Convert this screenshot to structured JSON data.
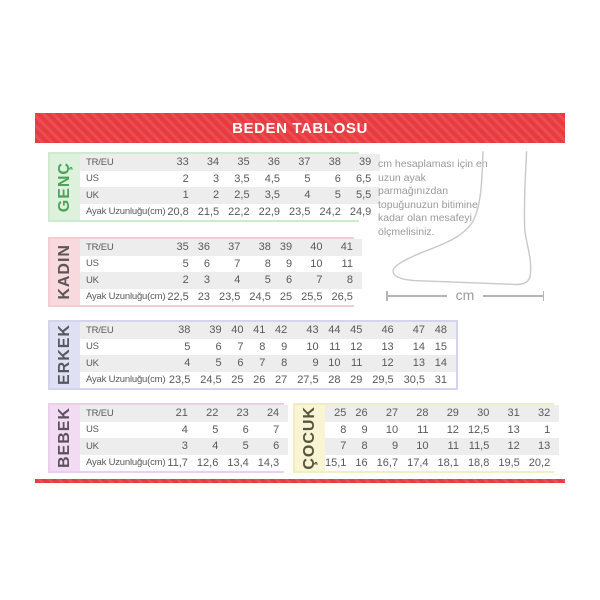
{
  "page": {
    "title": "BEDEN TABLOSU"
  },
  "colors": {
    "banner_red": "#e73b40",
    "stripe_gray": "#ededed",
    "table_text": "#58595b"
  },
  "sections": [
    {
      "id": "genc",
      "label": "GENÇ",
      "colors": {
        "bg": "#ddf1dd",
        "border": "#cfeacf",
        "text": "#4ba45b"
      },
      "row_labels": [
        "TR/EU",
        "US",
        "UK",
        "Ayak Uzunluğu(cm)"
      ],
      "rows": [
        [
          "33",
          "34",
          "35",
          "36",
          "37",
          "38",
          "39"
        ],
        [
          "2",
          "3",
          "3,5",
          "4,5",
          "5",
          "6",
          "6,5"
        ],
        [
          "1",
          "2",
          "2,5",
          "3,5",
          "4",
          "5",
          "5,5"
        ],
        [
          "20,8",
          "21,5",
          "22,2",
          "22,9",
          "23,5",
          "24,2",
          "24,9"
        ]
      ]
    },
    {
      "id": "kadin",
      "label": "KADIN",
      "colors": {
        "bg": "#f8dade",
        "border": "#f3cdd3",
        "text": "#5c5556"
      },
      "row_labels": [
        "TR/EU",
        "US",
        "UK",
        "Ayak Uzunluğu(cm)"
      ],
      "rows": [
        [
          "35",
          "36",
          "37",
          "38",
          "39",
          "40",
          "41"
        ],
        [
          "5",
          "6",
          "7",
          "8",
          "9",
          "10",
          "11"
        ],
        [
          "2",
          "3",
          "4",
          "5",
          "6",
          "7",
          "8"
        ],
        [
          "22,5",
          "23",
          "23,5",
          "24,5",
          "25",
          "25,5",
          "26,5"
        ]
      ]
    },
    {
      "id": "erkek",
      "label": "ERKEK",
      "colors": {
        "bg": "#e0e0f4",
        "border": "#d4d4ec",
        "text": "#57575f"
      },
      "row_labels": [
        "TR/EU",
        "US",
        "UK",
        "Ayak Uzunluğu(cm)"
      ],
      "rows": [
        [
          "38",
          "39",
          "40",
          "41",
          "42",
          "43",
          "44",
          "45",
          "46",
          "47",
          "48"
        ],
        [
          "5",
          "6",
          "7",
          "8",
          "9",
          "10",
          "11",
          "12",
          "13",
          "14",
          "15"
        ],
        [
          "4",
          "5",
          "6",
          "7",
          "8",
          "9",
          "10",
          "11",
          "12",
          "13",
          "14"
        ],
        [
          "23,5",
          "24,5",
          "25",
          "26",
          "27",
          "27,5",
          "28",
          "29",
          "29,5",
          "30,5",
          "31"
        ]
      ]
    },
    {
      "id": "bebek",
      "label": "BEBEK",
      "colors": {
        "bg": "#f2dbf3",
        "border": "#ead0ec",
        "text": "#5b525e"
      },
      "row_labels": [
        "TR/EU",
        "US",
        "UK",
        "Ayak Uzunluğu(cm)"
      ],
      "rows": [
        [
          "21",
          "22",
          "23",
          "24"
        ],
        [
          "4",
          "5",
          "6",
          "7"
        ],
        [
          "3",
          "4",
          "5",
          "6"
        ],
        [
          "11,7",
          "12,6",
          "13,4",
          "14,3"
        ]
      ]
    },
    {
      "id": "cocuk",
      "label": "ÇOCUK",
      "colors": {
        "bg": "#f8f4d4",
        "border": "#f0ecc4",
        "text": "#56553f"
      },
      "row_labels": [],
      "rows": [
        [
          "25",
          "26",
          "27",
          "28",
          "29",
          "30",
          "31",
          "32"
        ],
        [
          "8",
          "9",
          "10",
          "11",
          "12",
          "12,5",
          "13",
          "1"
        ],
        [
          "7",
          "8",
          "9",
          "10",
          "11",
          "11,5",
          "12",
          "13"
        ],
        [
          "15,1",
          "16",
          "16,7",
          "17,4",
          "18,1",
          "18,8",
          "19,5",
          "20,2"
        ]
      ]
    }
  ],
  "info_panel": {
    "text": "cm hesaplaması için en uzun ayak parmağınızdan topuğunuzun bitimine kadar olan mesafeyi ölçmelisiniz.",
    "measure_label": "cm",
    "foot_icon": "foot-outline-icon"
  }
}
